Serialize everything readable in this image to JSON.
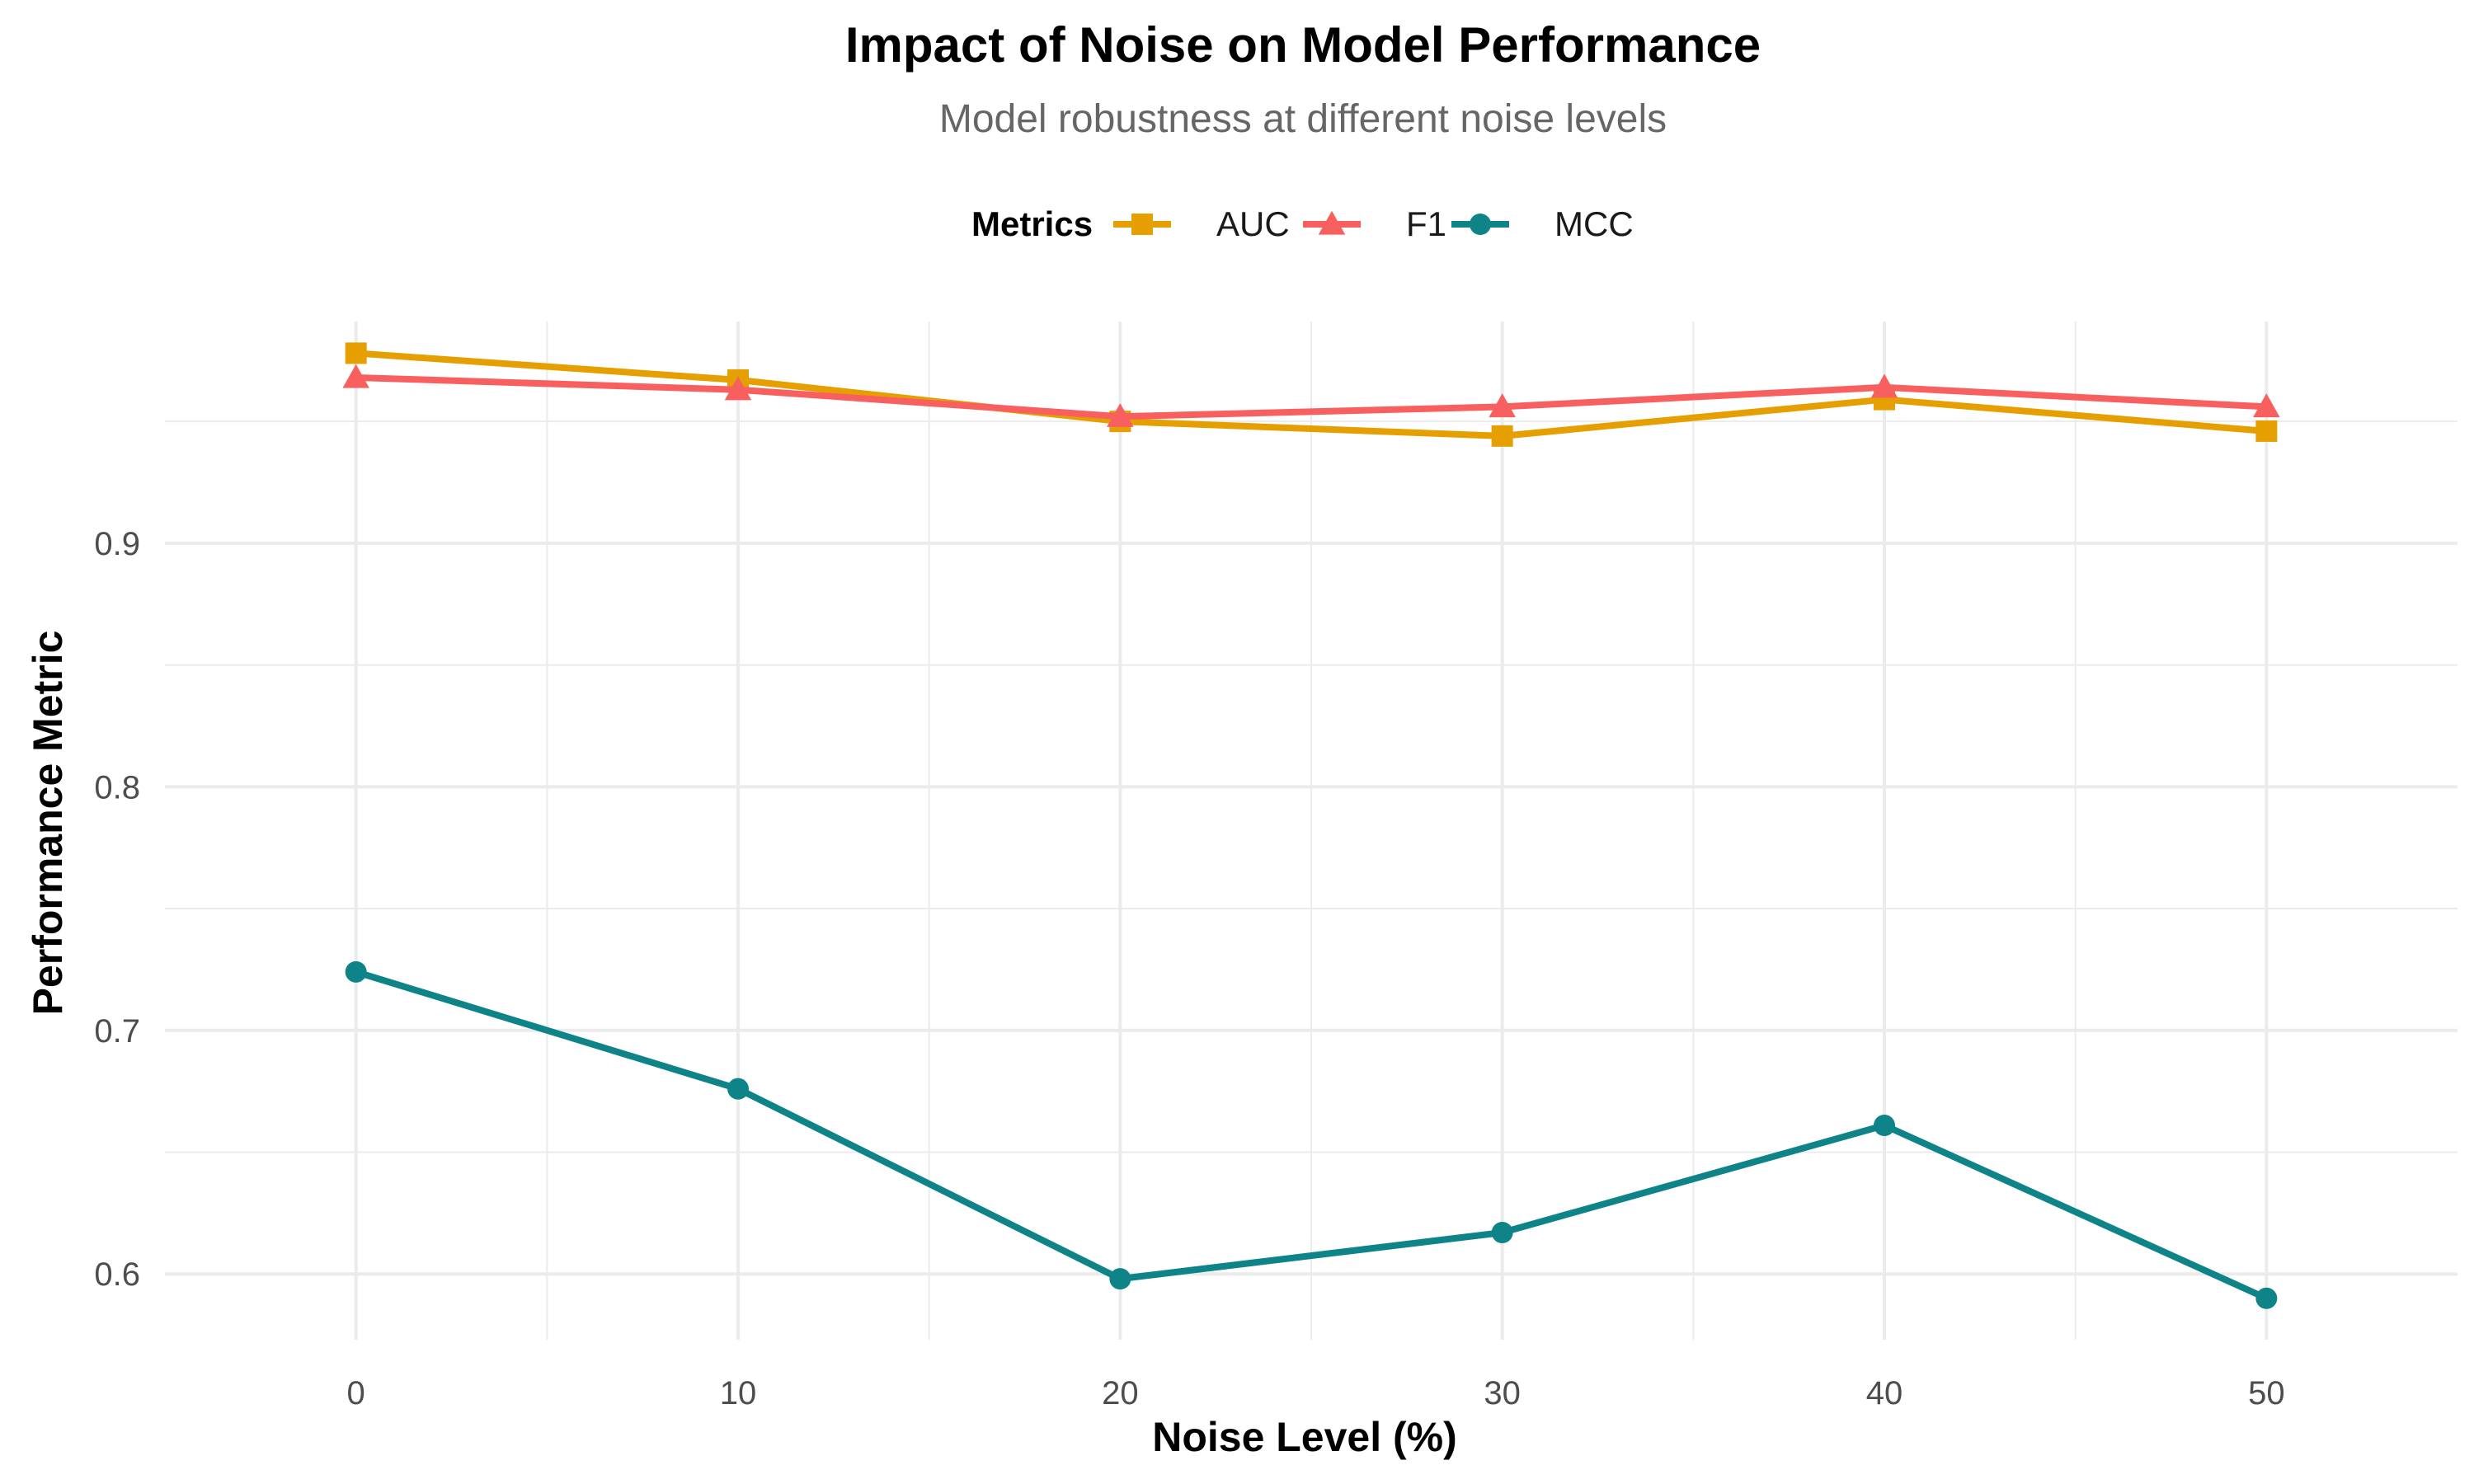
{
  "chart_data": {
    "type": "line",
    "title": "Impact of Noise on Model Performance",
    "subtitle": "Model robustness at different noise levels",
    "xlabel": "Noise Level (%)",
    "ylabel": "Performance Metric",
    "x": [
      0,
      10,
      20,
      30,
      40,
      50
    ],
    "xlim": [
      -5,
      55
    ],
    "ylim": [
      0.573,
      0.991
    ],
    "x_ticks": [
      0,
      10,
      20,
      30,
      40,
      50
    ],
    "y_ticks": [
      0.6,
      0.7,
      0.8,
      0.9
    ],
    "x_tick_labels": [
      "0",
      "10",
      "20",
      "30",
      "40",
      "50"
    ],
    "y_tick_labels": [
      "0.6",
      "0.7",
      "0.8",
      "0.9"
    ],
    "grid": true,
    "legend": {
      "title": "Metrics",
      "position": "top"
    },
    "series": [
      {
        "name": "AUC",
        "color": "#E69F00",
        "marker": "square",
        "values": [
          0.978,
          0.967,
          0.95,
          0.944,
          0.959,
          0.946
        ]
      },
      {
        "name": "F1",
        "color": "#F8605F",
        "marker": "triangle",
        "values": [
          0.968,
          0.963,
          0.952,
          0.956,
          0.964,
          0.956
        ]
      },
      {
        "name": "MCC",
        "color": "#0E8388",
        "marker": "circle",
        "values": [
          0.724,
          0.676,
          0.598,
          0.617,
          0.661,
          0.59
        ]
      }
    ]
  }
}
